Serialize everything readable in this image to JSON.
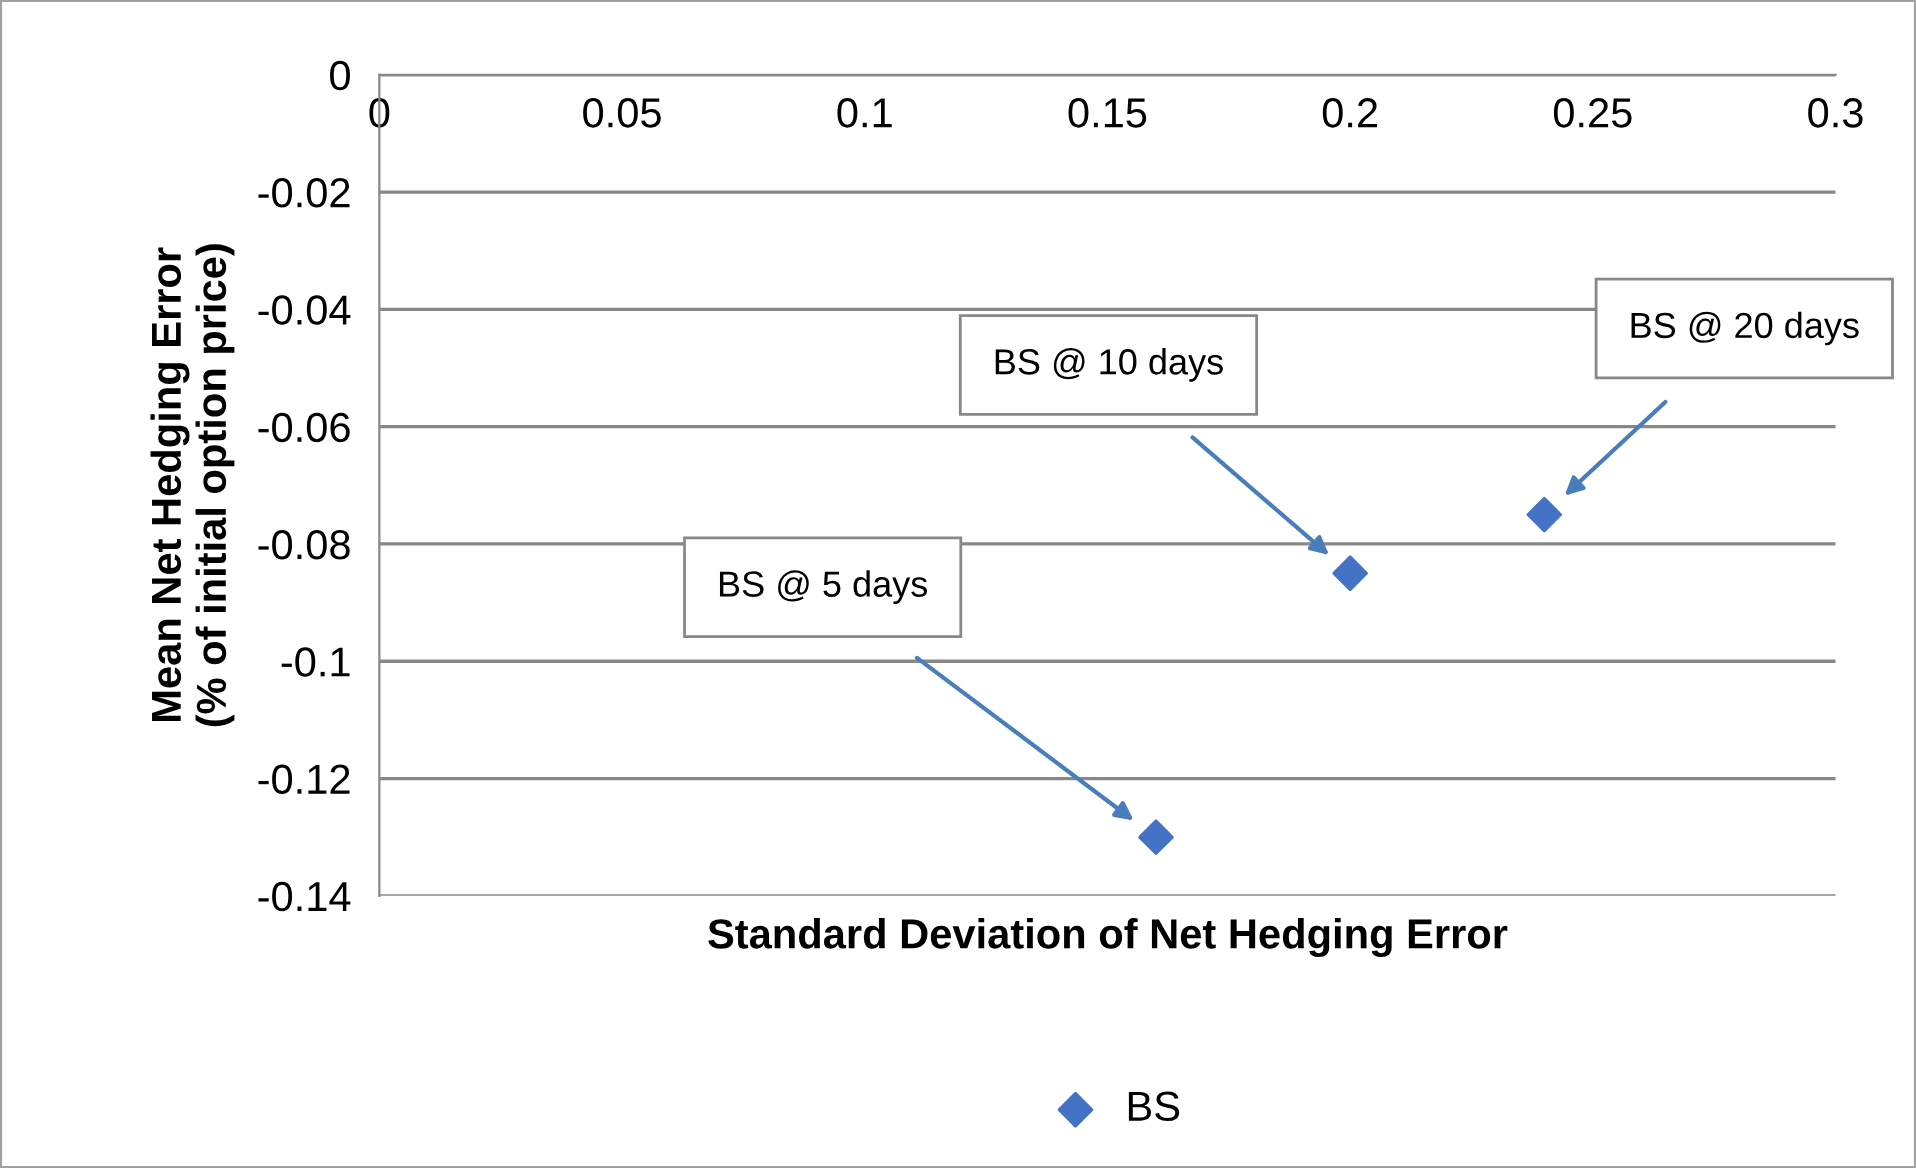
{
  "chart_data": {
    "type": "scatter",
    "xlabel": "Standard Deviation of Net Hedging Error",
    "ylabel": "Mean Net Hedging Error\n(% of initial option price)",
    "series": [
      {
        "name": "BS",
        "color": "#4472c4",
        "x": [
          0.16,
          0.2,
          0.24
        ],
        "values": [
          -0.13,
          -0.085,
          -0.075
        ]
      }
    ],
    "annotations": [
      "BS @ 5 days",
      "BS @ 10 days",
      "BS @ 20 days"
    ],
    "xlim": [
      0,
      0.3
    ],
    "xticks": [
      0,
      0.05,
      0.1,
      0.15,
      0.2,
      0.25,
      0.3
    ],
    "ylim": [
      -0.14,
      0
    ],
    "yticks": [
      -0.14,
      -0.12,
      -0.1,
      -0.08,
      -0.06,
      -0.04,
      -0.02,
      0
    ],
    "grid": "y",
    "legend": "bottom",
    "marker": "diamond"
  }
}
